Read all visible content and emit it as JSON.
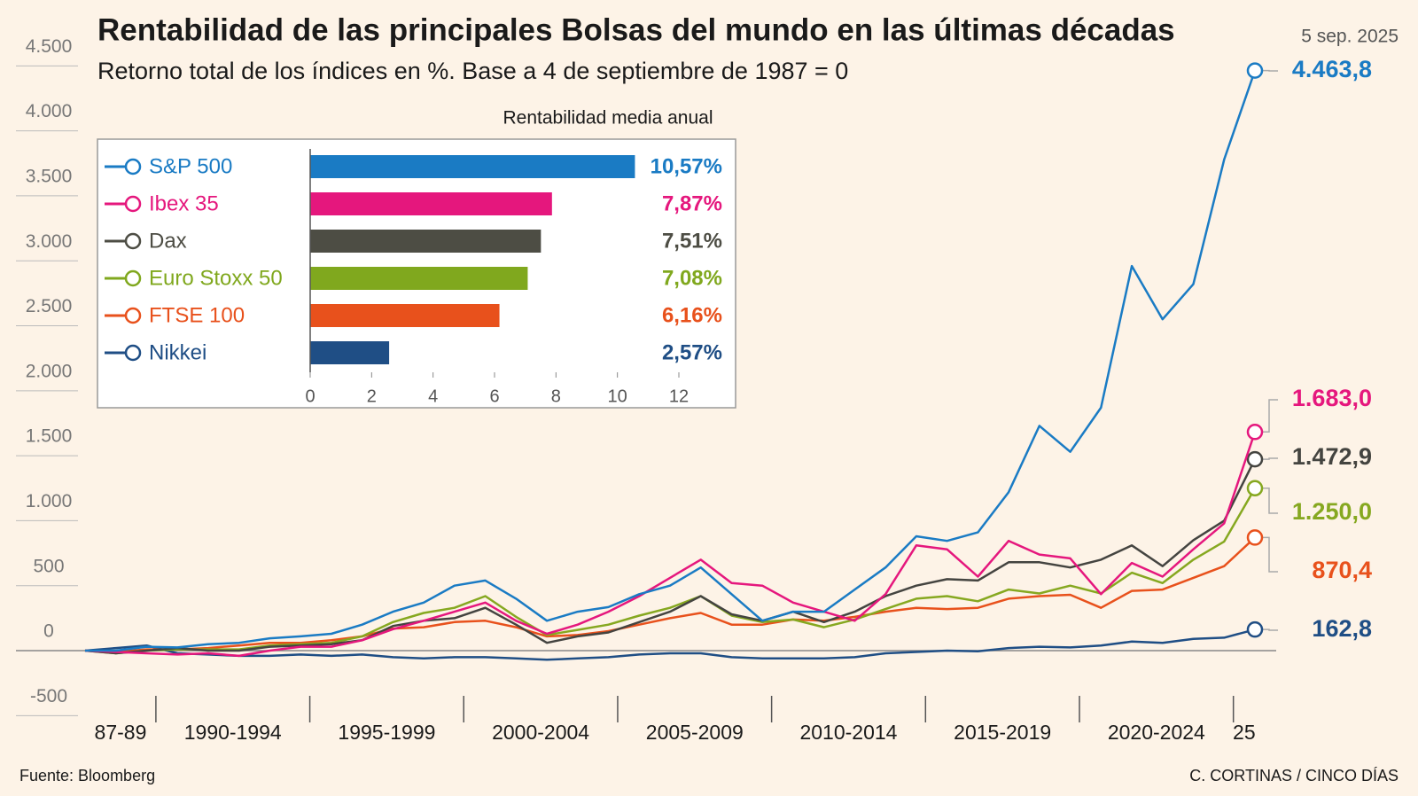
{
  "chart_data": [
    {
      "type": "line",
      "title": "Rentabilidad de las principales Bolsas del mundo en las últimas décadas",
      "subtitle": "Retorno total de los índices en %. Base a 4 de septiembre de 1987 = 0",
      "date": "5 sep. 2025",
      "source": "Fuente: Bloomberg",
      "credit": "C. CORTINAS / CINCO DÍAS",
      "x": [
        1987.7,
        1988.7,
        1989.7,
        1990.7,
        1991.7,
        1992.7,
        1993.7,
        1994.7,
        1995.7,
        1996.7,
        1997.7,
        1998.7,
        1999.7,
        2000.7,
        2001.7,
        2002.7,
        2003.7,
        2004.7,
        2005.7,
        2006.7,
        2007.7,
        2008.7,
        2009.7,
        2010.7,
        2011.7,
        2012.7,
        2013.7,
        2014.7,
        2015.7,
        2016.7,
        2017.7,
        2018.7,
        2019.7,
        2020.7,
        2021.7,
        2022.7,
        2023.7,
        2024.7,
        2025.7
      ],
      "xlim": [
        1987.7,
        2025.7
      ],
      "xticks": [
        1990,
        1995,
        2000,
        2005,
        2010,
        2015,
        2020,
        2025
      ],
      "xtick_labels": [
        "87-89",
        "1990-1994",
        "1995-1999",
        "2000-2004",
        "2005-2009",
        "2010-2014",
        "2015-2019",
        "2020-2024",
        "25"
      ],
      "ylim": [
        -600,
        4700
      ],
      "yticks": [
        -500,
        0,
        500,
        {
          "value": 1000,
          "label": "1.000"
        },
        {
          "value": 1500,
          "label": "1.500"
        },
        {
          "value": 2000,
          "label": "2.000"
        },
        {
          "value": 2500,
          "label": "2.500"
        },
        {
          "value": 3000,
          "label": "3.000"
        },
        {
          "value": 3500,
          "label": "3.500"
        },
        {
          "value": 4000,
          "label": "4.000"
        },
        {
          "value": 4500,
          "label": "4.500"
        }
      ],
      "series": [
        {
          "name": "S&P 500",
          "color": "#1a7bc4",
          "values": [
            0,
            0,
            30,
            25,
            50,
            60,
            95,
            110,
            130,
            200,
            300,
            370,
            500,
            540,
            400,
            230,
            300,
            335,
            435,
            500,
            640,
            435,
            230,
            300,
            300,
            470,
            640,
            880,
            845,
            910,
            1220,
            1730,
            1530,
            1870,
            2960,
            2550,
            2820,
            3780,
            4463.8
          ],
          "value_labels": [
            null,
            null,
            null,
            null,
            null,
            null,
            null,
            null,
            null,
            null,
            null,
            null,
            null,
            null,
            null,
            null,
            null,
            null,
            null,
            null,
            null,
            null,
            null,
            null,
            null,
            null,
            null,
            null,
            null,
            null,
            null,
            null,
            null,
            null,
            null,
            null,
            null,
            null,
            "4.463,8"
          ]
        },
        {
          "name": "Ibex 35",
          "color": "#e5177d",
          "values": [
            0,
            -10,
            -20,
            -30,
            -20,
            -40,
            0,
            30,
            30,
            80,
            165,
            230,
            300,
            370,
            230,
            130,
            200,
            300,
            420,
            560,
            700,
            520,
            500,
            370,
            300,
            230,
            435,
            810,
            780,
            570,
            845,
            740,
            710,
            435,
            675,
            570,
            780,
            980,
            1683.0
          ],
          "value_labels": [
            null,
            null,
            null,
            null,
            null,
            null,
            null,
            null,
            null,
            null,
            null,
            null,
            null,
            null,
            null,
            null,
            null,
            null,
            null,
            null,
            null,
            null,
            null,
            null,
            null,
            null,
            null,
            null,
            null,
            null,
            null,
            null,
            null,
            null,
            null,
            null,
            null,
            null,
            "1.683,0"
          ]
        },
        {
          "name": "Dax",
          "color": "#444440",
          "values": [
            0,
            -20,
            0,
            20,
            0,
            0,
            30,
            40,
            50,
            80,
            190,
            230,
            250,
            330,
            200,
            60,
            110,
            140,
            220,
            300,
            420,
            280,
            230,
            300,
            220,
            300,
            420,
            500,
            550,
            540,
            680,
            680,
            640,
            700,
            810,
            650,
            850,
            1000,
            1472.9
          ],
          "value_labels": [
            null,
            null,
            null,
            null,
            null,
            null,
            null,
            null,
            null,
            null,
            null,
            null,
            null,
            null,
            null,
            null,
            null,
            null,
            null,
            null,
            null,
            null,
            null,
            null,
            null,
            null,
            null,
            null,
            null,
            null,
            null,
            null,
            null,
            null,
            null,
            null,
            null,
            null,
            "1.472,9"
          ]
        },
        {
          "name": "Euro Stoxx 50",
          "color": "#86a820",
          "values": [
            0,
            -20,
            0,
            10,
            10,
            10,
            40,
            50,
            60,
            110,
            220,
            290,
            330,
            420,
            260,
            120,
            160,
            200,
            270,
            330,
            420,
            270,
            220,
            240,
            180,
            240,
            320,
            400,
            420,
            380,
            470,
            440,
            500,
            440,
            600,
            520,
            700,
            840,
            1250.0
          ],
          "value_labels": [
            null,
            null,
            null,
            null,
            null,
            null,
            null,
            null,
            null,
            null,
            null,
            null,
            null,
            null,
            null,
            null,
            null,
            null,
            null,
            null,
            null,
            null,
            null,
            null,
            null,
            null,
            null,
            null,
            null,
            null,
            null,
            null,
            null,
            null,
            null,
            null,
            null,
            null,
            "1.250,0"
          ]
        },
        {
          "name": "FTSE 100",
          "color": "#e8511c",
          "values": [
            0,
            -10,
            10,
            10,
            20,
            40,
            60,
            60,
            80,
            110,
            170,
            180,
            220,
            230,
            180,
            110,
            120,
            150,
            200,
            250,
            290,
            200,
            200,
            240,
            230,
            260,
            300,
            330,
            320,
            330,
            400,
            420,
            430,
            330,
            460,
            470,
            560,
            650,
            870.4
          ],
          "value_labels": [
            null,
            null,
            null,
            null,
            null,
            null,
            null,
            null,
            null,
            null,
            null,
            null,
            null,
            null,
            null,
            null,
            null,
            null,
            null,
            null,
            null,
            null,
            null,
            null,
            null,
            null,
            null,
            null,
            null,
            null,
            null,
            null,
            null,
            null,
            null,
            null,
            null,
            null,
            "870,4"
          ]
        },
        {
          "name": "Nikkei",
          "color": "#1f4e85",
          "values": [
            0,
            20,
            40,
            -20,
            -30,
            -40,
            -40,
            -30,
            -40,
            -30,
            -50,
            -60,
            -50,
            -50,
            -60,
            -70,
            -60,
            -50,
            -30,
            -20,
            -20,
            -50,
            -60,
            -60,
            -60,
            -50,
            -20,
            -10,
            0,
            -5,
            20,
            30,
            25,
            40,
            70,
            60,
            90,
            100,
            162.8
          ],
          "value_labels": [
            null,
            null,
            null,
            null,
            null,
            null,
            null,
            null,
            null,
            null,
            null,
            null,
            null,
            null,
            null,
            null,
            null,
            null,
            null,
            null,
            null,
            null,
            null,
            null,
            null,
            null,
            null,
            null,
            null,
            null,
            null,
            null,
            null,
            null,
            null,
            null,
            null,
            null,
            "162,8"
          ]
        }
      ]
    },
    {
      "type": "hbar",
      "title": "Rentabilidad media anual",
      "categories": [
        "S&P 500",
        "Ibex 35",
        "Dax",
        "Euro Stoxx 50",
        "FTSE 100",
        "Nikkei"
      ],
      "values": [
        10.57,
        7.87,
        7.51,
        7.08,
        6.16,
        2.57
      ],
      "value_labels": [
        "10,57%",
        "7,87%",
        "7,51%",
        "7,08%",
        "6,16%",
        "2,57%"
      ],
      "colors": [
        "#1a7bc4",
        "#e5177d",
        "#4d4d44",
        "#80a81e",
        "#e8511c",
        "#1f4e85"
      ],
      "xlim": [
        0,
        12
      ],
      "xticks": [
        0,
        2,
        4,
        6,
        8,
        10,
        12
      ]
    }
  ]
}
